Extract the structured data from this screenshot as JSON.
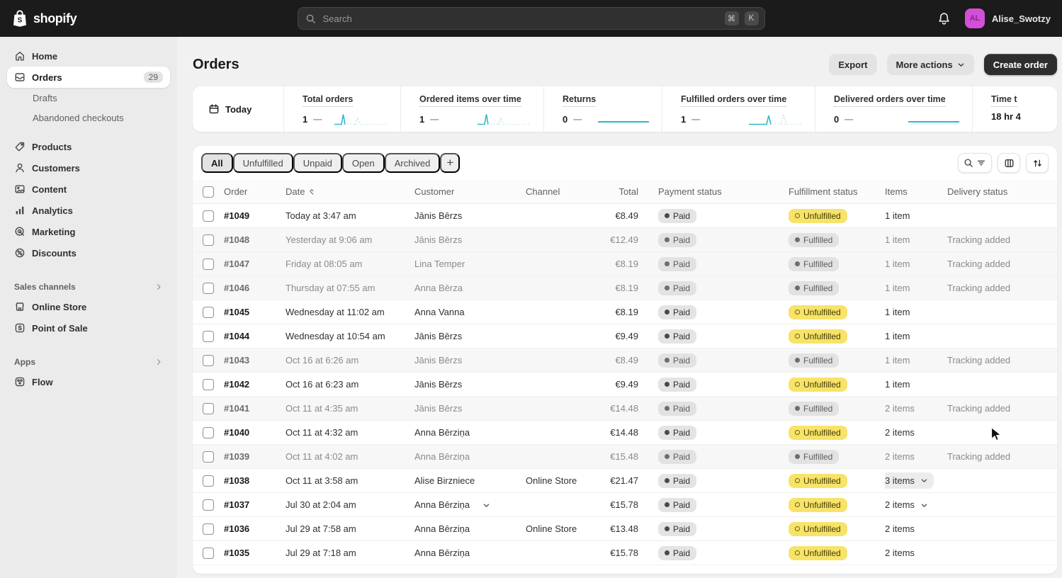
{
  "topbar": {
    "brand": {
      "name": "shopify",
      "logo_letter": "S"
    },
    "search": {
      "placeholder": "Search",
      "icon": "search-icon",
      "shortcut_keys": [
        "⌘",
        "K"
      ]
    },
    "notifications_icon": "bell-icon",
    "user": {
      "initials": "AL",
      "name": "Alise_Swotzy"
    }
  },
  "sidebar": {
    "items": [
      {
        "label": "Home",
        "icon": "home-icon"
      },
      {
        "label": "Orders",
        "icon": "orders-icon",
        "badge": "29",
        "active": true,
        "children": [
          "Drafts",
          "Abandoned checkouts"
        ]
      },
      {
        "label": "Products",
        "icon": "products-icon"
      },
      {
        "label": "Customers",
        "icon": "customers-icon"
      },
      {
        "label": "Content",
        "icon": "content-icon"
      },
      {
        "label": "Analytics",
        "icon": "analytics-icon"
      },
      {
        "label": "Marketing",
        "icon": "marketing-icon"
      },
      {
        "label": "Discounts",
        "icon": "discounts-icon"
      }
    ],
    "sections": [
      {
        "title": "Sales channels",
        "chevron": "chevron-right-icon",
        "items": [
          {
            "label": "Online Store",
            "icon": "store-icon"
          },
          {
            "label": "Point of Sale",
            "icon": "pos-icon"
          }
        ]
      },
      {
        "title": "Apps",
        "chevron": "chevron-right-icon",
        "items": [
          {
            "label": "Flow",
            "icon": "flow-icon"
          }
        ]
      }
    ]
  },
  "page": {
    "title": "Orders",
    "actions": {
      "export": "Export",
      "more_actions": "More actions",
      "create_order": "Create order"
    }
  },
  "stats": {
    "period": {
      "label": "Today",
      "icon": "calendar-icon"
    },
    "metrics": [
      {
        "label": "Total orders",
        "value": "1",
        "trend": "—",
        "spark": "spike"
      },
      {
        "label": "Ordered items over time",
        "value": "1",
        "trend": "—",
        "spark": "spike"
      },
      {
        "label": "Returns",
        "value": "0",
        "trend": "—",
        "spark": "flat"
      },
      {
        "label": "Fulfilled orders over time",
        "value": "1",
        "trend": "—",
        "spark": "spike2"
      },
      {
        "label": "Delivered orders over time",
        "value": "0",
        "trend": "—",
        "spark": "flat-dotted"
      },
      {
        "label": "Time t",
        "value": "18 hr 4",
        "trend": "",
        "spark": "none"
      }
    ]
  },
  "tabs": {
    "items": [
      "All",
      "Unfulfilled",
      "Unpaid",
      "Open",
      "Archived"
    ],
    "active": "All",
    "add_label": "+"
  },
  "toolbar": {
    "buttons": [
      {
        "name": "search-filter-button",
        "icons": [
          "search-icon",
          "filter-icon"
        ]
      },
      {
        "name": "columns-button",
        "icons": [
          "columns-icon"
        ]
      },
      {
        "name": "sort-button",
        "icons": [
          "sort-icon"
        ]
      }
    ]
  },
  "table": {
    "columns": [
      "Order",
      "Date",
      "Customer",
      "Channel",
      "Total",
      "Payment status",
      "Fulfillment status",
      "Items",
      "Delivery status"
    ],
    "date_sort_icon": "caret-updown-icon",
    "rows": [
      {
        "order": "#1049",
        "date": "Today at 3:47 am",
        "customer": "Jānis Bērzs",
        "channel": "",
        "total": "€8.49",
        "payment": "Paid",
        "fulfillment": "Unfulfilled",
        "items": "1 item",
        "delivery": "",
        "closed": false
      },
      {
        "order": "#1048",
        "date": "Yesterday at 9:06 am",
        "customer": "Jānis Bērzs",
        "channel": "",
        "total": "€12.49",
        "payment": "Paid",
        "fulfillment": "Fulfilled",
        "items": "1 item",
        "delivery": "Tracking added",
        "closed": true
      },
      {
        "order": "#1047",
        "date": "Friday at 08:05 am",
        "customer": "Lina Temper",
        "channel": "",
        "total": "€8.19",
        "payment": "Paid",
        "fulfillment": "Fulfilled",
        "items": "1 item",
        "delivery": "Tracking added",
        "closed": true
      },
      {
        "order": "#1046",
        "date": "Thursday at 07:55 am",
        "customer": "Anna Bērza",
        "channel": "",
        "total": "€8.19",
        "payment": "Paid",
        "fulfillment": "Fulfilled",
        "items": "1 item",
        "delivery": "Tracking added",
        "closed": true
      },
      {
        "order": "#1045",
        "date": "Wednesday at 11:02 am",
        "customer": "Anna Vanna",
        "channel": "",
        "total": "€8.19",
        "payment": "Paid",
        "fulfillment": "Unfulfilled",
        "items": "1 item",
        "delivery": "",
        "closed": false
      },
      {
        "order": "#1044",
        "date": "Wednesday at 10:54 am",
        "customer": "Jānis Bērzs",
        "channel": "",
        "total": "€9.49",
        "payment": "Paid",
        "fulfillment": "Unfulfilled",
        "items": "1 item",
        "delivery": "",
        "closed": false
      },
      {
        "order": "#1043",
        "date": "Oct 16 at 6:26 am",
        "customer": "Jānis Bērzs",
        "channel": "",
        "total": "€8.49",
        "payment": "Paid",
        "fulfillment": "Fulfilled",
        "items": "1 item",
        "delivery": "Tracking added",
        "closed": true
      },
      {
        "order": "#1042",
        "date": "Oct 16 at 6:23 am",
        "customer": "Jānis Bērzs",
        "channel": "",
        "total": "€9.49",
        "payment": "Paid",
        "fulfillment": "Unfulfilled",
        "items": "1 item",
        "delivery": "",
        "closed": false
      },
      {
        "order": "#1041",
        "date": "Oct 11 at 4:35 am",
        "customer": "Jānis Bērzs",
        "channel": "",
        "total": "€14.48",
        "payment": "Paid",
        "fulfillment": "Fulfilled",
        "items": "2 items",
        "delivery": "Tracking added",
        "closed": true
      },
      {
        "order": "#1040",
        "date": "Oct 11 at 4:32 am",
        "customer": "Anna Bērziņa",
        "channel": "",
        "total": "€14.48",
        "payment": "Paid",
        "fulfillment": "Unfulfilled",
        "items": "2 items",
        "delivery": "",
        "closed": false
      },
      {
        "order": "#1039",
        "date": "Oct 11 at 4:02 am",
        "customer": "Anna Bērziņa",
        "channel": "",
        "total": "€15.48",
        "payment": "Paid",
        "fulfillment": "Fulfilled",
        "items": "2 items",
        "delivery": "Tracking added",
        "closed": true
      },
      {
        "order": "#1038",
        "date": "Oct 11 at 3:58 am",
        "customer": "Alise Birzniece",
        "channel": "Online Store",
        "total": "€21.47",
        "payment": "Paid",
        "fulfillment": "Unfulfilled",
        "items": "3 items",
        "items_expandable": true,
        "items_highlight": true,
        "delivery": "",
        "closed": false
      },
      {
        "order": "#1037",
        "date": "Jul 30 at 2:04 am",
        "customer": "Anna Bērziņa",
        "customer_expandable": true,
        "channel": "",
        "total": "€15.78",
        "payment": "Paid",
        "fulfillment": "Unfulfilled",
        "items": "2 items",
        "items_expandable": true,
        "delivery": "",
        "closed": false
      },
      {
        "order": "#1036",
        "date": "Jul 29 at 7:58 am",
        "customer": "Anna Bērziņa",
        "channel": "Online Store",
        "total": "€13.48",
        "payment": "Paid",
        "fulfillment": "Unfulfilled",
        "items": "2 items",
        "delivery": "",
        "closed": false
      },
      {
        "order": "#1035",
        "date": "Jul 29 at 7:18 am",
        "customer": "Anna Bērziņa",
        "channel": "",
        "total": "€15.78",
        "payment": "Paid",
        "fulfillment": "Unfulfilled",
        "items": "2 items",
        "delivery": "",
        "closed": false
      }
    ]
  },
  "colors": {
    "accent_yellow": "#f7e369",
    "spark_teal": "#2fb9cd",
    "avatar_magenta": "#d24fd8",
    "topbar_bg": "#1b1b1b"
  }
}
